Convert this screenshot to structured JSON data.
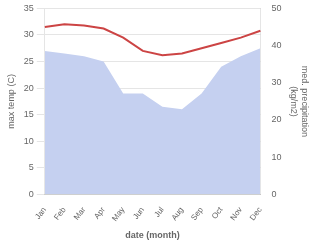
{
  "chart_data": {
    "type": "line",
    "categories": [
      "Jan",
      "Feb",
      "Mar",
      "Apr",
      "May",
      "Jun",
      "Jul",
      "Aug",
      "Sep",
      "Oct",
      "Nov",
      "Dec"
    ],
    "series": [
      {
        "type": "area",
        "color": "#c5d0f0",
        "values": [
          27.0,
          26.5,
          26.0,
          25.0,
          19.0,
          19.0,
          16.5,
          16.0,
          19.0,
          24.0,
          26.0,
          27.5
        ]
      },
      {
        "type": "line",
        "color": "#cc4444",
        "values": [
          31.5,
          32.0,
          31.8,
          31.2,
          29.5,
          27.0,
          26.2,
          26.5,
          27.5,
          28.5,
          29.5,
          30.8
        ]
      }
    ],
    "xlabel": "date (month)",
    "ylabel": "max temp (C)",
    "y2label": "med. precipitation\n(kg/m2)",
    "ylim": [
      0,
      35
    ],
    "yticks": [
      0,
      5,
      10,
      15,
      20,
      25,
      30,
      35
    ],
    "y2lim": [
      0,
      50
    ],
    "y2ticks": [
      0,
      10,
      20,
      30,
      40,
      50
    ],
    "grid": true
  }
}
